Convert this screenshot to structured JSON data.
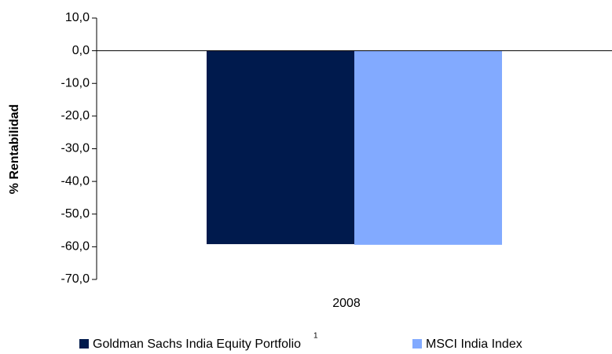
{
  "chart_data": {
    "type": "bar",
    "y_axis_label": "% Rentabilidad",
    "categories": [
      "2008"
    ],
    "series": [
      {
        "name": "Goldman Sachs India Equity Portfolio",
        "color": "#001a4d",
        "values": [
          -59.2
        ]
      },
      {
        "name": "MSCI India Index",
        "color": "#82aaff",
        "values": [
          -59.4
        ]
      }
    ],
    "legend_footnote_marker": "1",
    "ylim": [
      -70,
      10
    ],
    "yticks": [
      {
        "value": 10,
        "label": "10,0"
      },
      {
        "value": 0,
        "label": "0,0"
      },
      {
        "value": -10,
        "label": "-10,0"
      },
      {
        "value": -20,
        "label": "-20,0"
      },
      {
        "value": -30,
        "label": "-30,0"
      },
      {
        "value": -40,
        "label": "-40,0"
      },
      {
        "value": -50,
        "label": "-50,0"
      },
      {
        "value": -60,
        "label": "-60,0"
      },
      {
        "value": -70,
        "label": "-70,0"
      }
    ],
    "grid": false,
    "legend": "bottom"
  }
}
